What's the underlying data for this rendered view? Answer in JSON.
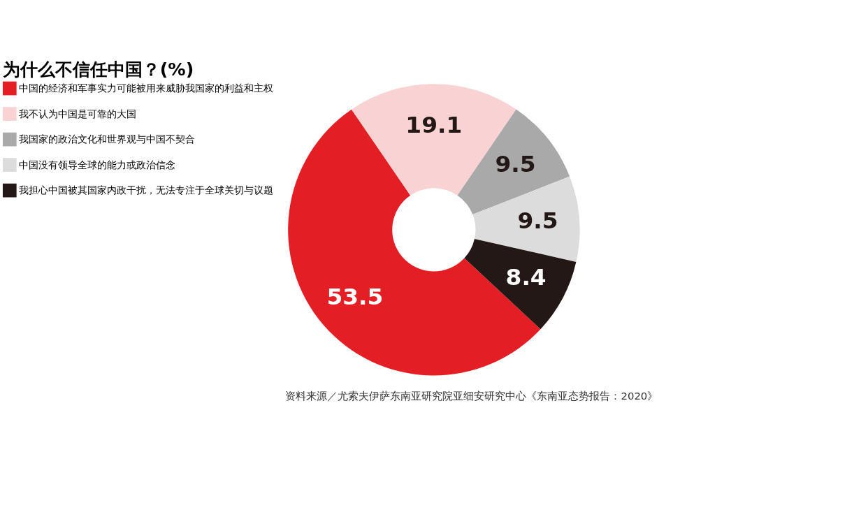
{
  "chart_data": {
    "type": "donut",
    "title": "为什么不信任中国？(%)",
    "categories": [
      "中国的经济和军事实力可能被用来威胁我国家的利益和主权",
      "我不认为中国是可靠的大国",
      "我国家的政治文化和世界观与中国不契合",
      "中国没有领导全球的能力或政治信念",
      "我担心中国被其国家内政干扰，无法专注于全球关切与议题"
    ],
    "values": [
      53.5,
      19.1,
      9.5,
      9.5,
      8.4
    ],
    "colors": [
      "#e31e24",
      "#f9d3d4",
      "#a9a9a9",
      "#dcdcdc",
      "#231815"
    ],
    "data_labels": true,
    "legend": "left",
    "annotations": [
      "资料来源／尤索夫伊萨东南亚研究院亚细安研究中心《东南亚态势报告：2020》"
    ]
  }
}
